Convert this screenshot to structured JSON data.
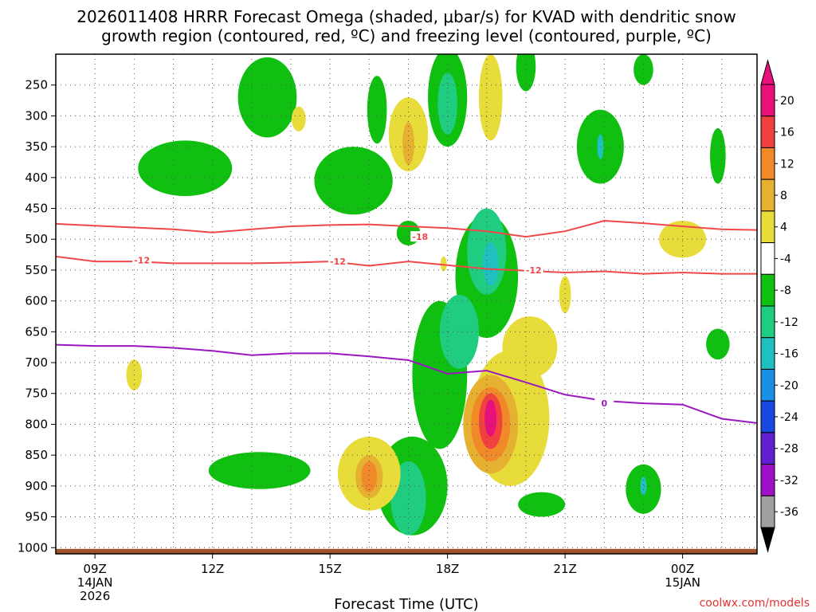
{
  "chart_data": {
    "type": "contour",
    "title_line1": "2026011408 HRRR Forecast Omega (shaded, μbar/s) for KVAD with dendritic snow",
    "title_line2": "growth region (contoured, red, ºC) and freezing level (contoured, purple, ºC)",
    "xlabel": "Forecast Time (UTC)",
    "credit": "coolwx.com/models",
    "x_ticks": [
      {
        "hour": 9,
        "label": "09Z",
        "sub1": "14JAN",
        "sub2": "2026"
      },
      {
        "hour": 12,
        "label": "12Z",
        "sub1": "",
        "sub2": ""
      },
      {
        "hour": 15,
        "label": "15Z",
        "sub1": "",
        "sub2": ""
      },
      {
        "hour": 18,
        "label": "18Z",
        "sub1": "",
        "sub2": ""
      },
      {
        "hour": 21,
        "label": "21Z",
        "sub1": "",
        "sub2": ""
      },
      {
        "hour": 24,
        "label": "00Z",
        "sub1": "15JAN",
        "sub2": ""
      }
    ],
    "x_range": [
      8,
      25.9
    ],
    "y_ticks": [
      250,
      300,
      350,
      400,
      450,
      500,
      550,
      600,
      650,
      700,
      750,
      800,
      850,
      900,
      950,
      1000
    ],
    "y_range": [
      200,
      1010
    ],
    "colorbar": {
      "labels": [
        "20",
        "16",
        "12",
        "8",
        "4",
        "-4",
        "-8",
        "-12",
        "-16",
        "-20",
        "-24",
        "-28",
        "-32",
        "-36"
      ],
      "bins": [
        {
          "color": "#e8107a"
        },
        {
          "color": "#f04040"
        },
        {
          "color": "#f08a28"
        },
        {
          "color": "#e6b030"
        },
        {
          "color": "#e8dc3a"
        },
        {
          "color": "#ffffff"
        },
        {
          "color": "#10c010"
        },
        {
          "color": "#20cc80"
        },
        {
          "color": "#20c0c0"
        },
        {
          "color": "#1890e8"
        },
        {
          "color": "#1848e0"
        },
        {
          "color": "#6020d0"
        },
        {
          "color": "#a010c8"
        },
        {
          "color": "#a0a0a0"
        }
      ]
    },
    "contours": [
      {
        "name": "dgz-minus18",
        "color": "#f04848",
        "label": "-18",
        "label_at": [
          17.3,
          496
        ],
        "points": [
          [
            8,
            475
          ],
          [
            9,
            478
          ],
          [
            10,
            481
          ],
          [
            11,
            484
          ],
          [
            12,
            489
          ],
          [
            13,
            484
          ],
          [
            14,
            479
          ],
          [
            15,
            477
          ],
          [
            16,
            476
          ],
          [
            17,
            479
          ],
          [
            18,
            482
          ],
          [
            19,
            487
          ],
          [
            20,
            496
          ],
          [
            21,
            487
          ],
          [
            22,
            470
          ],
          [
            23,
            474
          ],
          [
            24,
            479
          ],
          [
            25,
            484
          ],
          [
            25.9,
            485
          ]
        ]
      },
      {
        "name": "dgz-minus12",
        "color": "#f04848",
        "label": "-12",
        "label_at": [
          10.2,
          534
        ],
        "label2": "-12",
        "label2_at": [
          15.2,
          536
        ],
        "label3": "-12",
        "label3_at": [
          20.2,
          550
        ],
        "points": [
          [
            8,
            528
          ],
          [
            9,
            536
          ],
          [
            10,
            536
          ],
          [
            11,
            539
          ],
          [
            12,
            539
          ],
          [
            13,
            539
          ],
          [
            14,
            538
          ],
          [
            15,
            536
          ],
          [
            16,
            543
          ],
          [
            17,
            536
          ],
          [
            18,
            542
          ],
          [
            19,
            548
          ],
          [
            20,
            551
          ],
          [
            21,
            554
          ],
          [
            22,
            552
          ],
          [
            23,
            556
          ],
          [
            24,
            554
          ],
          [
            25,
            556
          ],
          [
            25.9,
            556
          ]
        ]
      },
      {
        "name": "freezing-level",
        "color": "#9a18c0",
        "label": "0",
        "label_at": [
          22.0,
          766
        ],
        "points": [
          [
            8,
            671
          ],
          [
            9,
            673
          ],
          [
            10,
            673
          ],
          [
            11,
            676
          ],
          [
            12,
            681
          ],
          [
            13,
            688
          ],
          [
            14,
            685
          ],
          [
            15,
            685
          ],
          [
            16,
            690
          ],
          [
            17,
            696
          ],
          [
            18,
            718
          ],
          [
            19,
            713
          ],
          [
            20,
            732
          ],
          [
            21,
            752
          ],
          [
            22,
            762
          ],
          [
            23,
            766
          ],
          [
            24,
            768
          ],
          [
            25,
            791
          ],
          [
            25.9,
            798
          ]
        ]
      }
    ],
    "omega_blobs": [
      {
        "level": 2,
        "color": "#10c010",
        "cx": 13.4,
        "cp": 270,
        "rx": 0.75,
        "rp": 65
      },
      {
        "level": 2,
        "color": "#10c010",
        "cx": 11.3,
        "cp": 385,
        "rx": 1.2,
        "rp": 45
      },
      {
        "level": 2,
        "color": "#10c010",
        "cx": 16.2,
        "cp": 290,
        "rx": 0.25,
        "rp": 55
      },
      {
        "level": 2,
        "color": "#10c010",
        "cx": 15.6,
        "cp": 405,
        "rx": 1.0,
        "rp": 55
      },
      {
        "level": 2,
        "color": "#10c010",
        "cx": 18.0,
        "cp": 270,
        "rx": 0.5,
        "rp": 80
      },
      {
        "level": 2,
        "color": "#10c010",
        "cx": 20.0,
        "cp": 220,
        "rx": 0.25,
        "rp": 40
      },
      {
        "level": 2,
        "color": "#10c010",
        "cx": 23.0,
        "cp": 225,
        "rx": 0.25,
        "rp": 25
      },
      {
        "level": 2,
        "color": "#10c010",
        "cx": 21.9,
        "cp": 350,
        "rx": 0.6,
        "rp": 60
      },
      {
        "level": 2,
        "color": "#10c010",
        "cx": 24.9,
        "cp": 365,
        "rx": 0.2,
        "rp": 45
      },
      {
        "level": 2,
        "color": "#10c010",
        "cx": 19.0,
        "cp": 560,
        "rx": 0.8,
        "rp": 100
      },
      {
        "level": 2,
        "color": "#10c010",
        "cx": 17.8,
        "cp": 720,
        "rx": 0.7,
        "rp": 120
      },
      {
        "level": 2,
        "color": "#10c010",
        "cx": 17.1,
        "cp": 900,
        "rx": 0.9,
        "rp": 80
      },
      {
        "level": 2,
        "color": "#10c010",
        "cx": 13.2,
        "cp": 875,
        "rx": 1.3,
        "rp": 30
      },
      {
        "level": 2,
        "color": "#10c010",
        "cx": 20.4,
        "cp": 930,
        "rx": 0.6,
        "rp": 20
      },
      {
        "level": 2,
        "color": "#10c010",
        "cx": 23.0,
        "cp": 905,
        "rx": 0.45,
        "rp": 40
      },
      {
        "level": 2,
        "color": "#10c010",
        "cx": 24.9,
        "cp": 670,
        "rx": 0.3,
        "rp": 25
      },
      {
        "level": 2,
        "color": "#10c010",
        "cx": 17.0,
        "cp": 490,
        "rx": 0.3,
        "rp": 20
      },
      {
        "level": 3,
        "color": "#20cc80",
        "cx": 18.0,
        "cp": 280,
        "rx": 0.25,
        "rp": 50
      },
      {
        "level": 3,
        "color": "#20cc80",
        "cx": 19.0,
        "cp": 520,
        "rx": 0.5,
        "rp": 70
      },
      {
        "level": 3,
        "color": "#20cc80",
        "cx": 18.3,
        "cp": 650,
        "rx": 0.5,
        "rp": 60
      },
      {
        "level": 3,
        "color": "#20cc80",
        "cx": 17.0,
        "cp": 920,
        "rx": 0.45,
        "rp": 60
      },
      {
        "level": 4,
        "color": "#20c0c0",
        "cx": 19.1,
        "cp": 540,
        "rx": 0.2,
        "rp": 35
      },
      {
        "level": 4,
        "color": "#20c0c0",
        "cx": 23.0,
        "cp": 900,
        "rx": 0.08,
        "rp": 15
      },
      {
        "level": 4,
        "color": "#20c0c0",
        "cx": 21.9,
        "cp": 350,
        "rx": 0.08,
        "rp": 20
      },
      {
        "level": 5,
        "color": "#e8dc3a",
        "cx": 14.2,
        "cp": 305,
        "rx": 0.18,
        "rp": 20
      },
      {
        "level": 5,
        "color": "#e8dc3a",
        "cx": 17.0,
        "cp": 330,
        "rx": 0.5,
        "rp": 60
      },
      {
        "level": 5,
        "color": "#e8dc3a",
        "cx": 19.1,
        "cp": 270,
        "rx": 0.3,
        "rp": 70
      },
      {
        "level": 5,
        "color": "#e8dc3a",
        "cx": 24.0,
        "cp": 500,
        "rx": 0.6,
        "rp": 30
      },
      {
        "level": 5,
        "color": "#e8dc3a",
        "cx": 21.0,
        "cp": 590,
        "rx": 0.15,
        "rp": 30
      },
      {
        "level": 5,
        "color": "#e8dc3a",
        "cx": 19.6,
        "cp": 790,
        "rx": 1.0,
        "rp": 110
      },
      {
        "level": 5,
        "color": "#e8dc3a",
        "cx": 20.1,
        "cp": 675,
        "rx": 0.7,
        "rp": 50
      },
      {
        "level": 5,
        "color": "#e8dc3a",
        "cx": 16.0,
        "cp": 880,
        "rx": 0.8,
        "rp": 60
      },
      {
        "level": 5,
        "color": "#e8dc3a",
        "cx": 10.0,
        "cp": 720,
        "rx": 0.2,
        "rp": 25
      },
      {
        "level": 5,
        "color": "#e8dc3a",
        "cx": 17.9,
        "cp": 540,
        "rx": 0.08,
        "rp": 12
      },
      {
        "level": 6,
        "color": "#e6b030",
        "cx": 17.0,
        "cp": 345,
        "rx": 0.15,
        "rp": 35
      },
      {
        "level": 6,
        "color": "#e6b030",
        "cx": 19.1,
        "cp": 800,
        "rx": 0.7,
        "rp": 80
      },
      {
        "level": 6,
        "color": "#e6b030",
        "cx": 16.0,
        "cp": 885,
        "rx": 0.35,
        "rp": 35
      },
      {
        "level": 7,
        "color": "#f08a28",
        "cx": 19.1,
        "cp": 800,
        "rx": 0.5,
        "rp": 60
      },
      {
        "level": 7,
        "color": "#f08a28",
        "cx": 16.0,
        "cp": 885,
        "rx": 0.2,
        "rp": 25
      },
      {
        "level": 8,
        "color": "#f04040",
        "cx": 19.1,
        "cp": 795,
        "rx": 0.3,
        "rp": 45
      },
      {
        "level": 9,
        "color": "#e8107a",
        "cx": 19.1,
        "cp": 790,
        "rx": 0.15,
        "rp": 30
      }
    ],
    "terrain": {
      "color": "#a0522d",
      "top_pressure": 1002
    }
  }
}
